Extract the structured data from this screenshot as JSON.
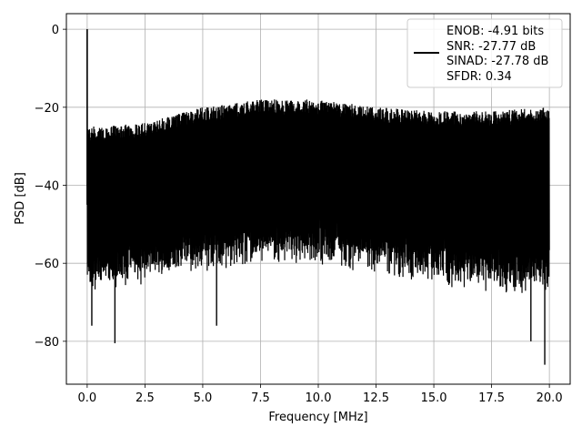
{
  "chart_data": {
    "type": "line",
    "title": "",
    "xlabel": "Frequency [MHz]",
    "ylabel": "PSD [dB]",
    "xlim": [
      -0.9,
      20.9
    ],
    "ylim": [
      -91,
      4
    ],
    "x_ticks": [
      0.0,
      2.5,
      5.0,
      7.5,
      10.0,
      12.5,
      15.0,
      17.5,
      20.0
    ],
    "x_tick_labels": [
      "0.0",
      "2.5",
      "5.0",
      "7.5",
      "10.0",
      "12.5",
      "15.0",
      "17.5",
      "20.0"
    ],
    "y_ticks": [
      0,
      -20,
      -40,
      -60,
      -80
    ],
    "y_tick_labels": [
      "0",
      "−20",
      "−40",
      "−60",
      "−80"
    ],
    "grid": true,
    "legend_position": "top-right",
    "series": [
      {
        "name": "ENOB: -4.91 bits\nSNR: -27.77 dB\nSINAD: -27.78 dB\nSFDR: 0.34",
        "legend_lines": [
          "ENOB: -4.91 bits",
          "SNR: -27.77 dB",
          "SINAD: -27.78 dB",
          "SFDR: 0.34"
        ],
        "color": "#000000",
        "x_range": [
          0.0,
          20.0
        ],
        "peak": {
          "x": 0.0,
          "y": 0
        },
        "upper_envelope": [
          [
            0.0,
            -25
          ],
          [
            2.5,
            -24
          ],
          [
            5.0,
            -20
          ],
          [
            7.5,
            -18
          ],
          [
            10.0,
            -18
          ],
          [
            12.5,
            -20
          ],
          [
            15.0,
            -21
          ],
          [
            17.5,
            -21
          ],
          [
            20.0,
            -20
          ]
        ],
        "typical_lower": [
          [
            0.0,
            -62
          ],
          [
            2.5,
            -60
          ],
          [
            5.0,
            -57
          ],
          [
            7.5,
            -55
          ],
          [
            10.0,
            -55
          ],
          [
            12.5,
            -57
          ],
          [
            15.0,
            -60
          ],
          [
            17.5,
            -62
          ],
          [
            20.0,
            -63
          ]
        ],
        "deep_notches": [
          [
            0.2,
            -76
          ],
          [
            1.2,
            -80.5
          ],
          [
            5.6,
            -76
          ],
          [
            19.8,
            -86
          ],
          [
            19.2,
            -80
          ]
        ]
      }
    ]
  }
}
